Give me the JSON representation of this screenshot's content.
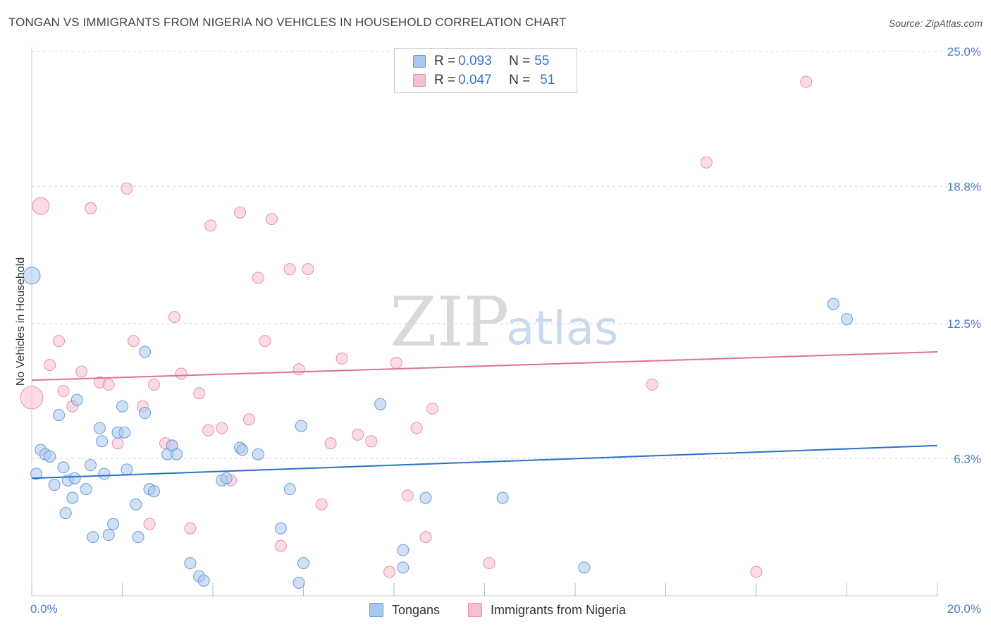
{
  "title": "TONGAN VS IMMIGRANTS FROM NIGERIA NO VEHICLES IN HOUSEHOLD CORRELATION CHART",
  "source": "Source: ZipAtlas.com",
  "watermark": {
    "zip": "ZIP",
    "atlas": "atlas"
  },
  "colors": {
    "blue_fill": "#a9c8ef",
    "blue_stroke": "#6b9ad8",
    "blue_line": "#2a6fcf",
    "pink_fill": "#f7c0d0",
    "pink_stroke": "#e890ac",
    "pink_line": "#e07098",
    "grid": "#d8d8d8",
    "axis_text": "#4a7cc0"
  },
  "legend_top": {
    "rows": [
      {
        "r_label": "R = ",
        "r_value": "0.093",
        "n_label": "N = ",
        "n_value": "55"
      },
      {
        "r_label": "R = ",
        "r_value": "0.047",
        "n_label": "N = ",
        "n_value": "51"
      }
    ]
  },
  "legend_bottom": {
    "series1": "Tongans",
    "series2": "Immigrants from Nigeria"
  },
  "chart_data": {
    "type": "scatter",
    "title": "TONGAN VS IMMIGRANTS FROM NIGERIA NO VEHICLES IN HOUSEHOLD CORRELATION CHART",
    "xlabel": "",
    "ylabel": "No Vehicles in Household",
    "xlim": [
      0,
      20
    ],
    "ylim": [
      0,
      25.9
    ],
    "x_tick_labels": [
      "0.0%",
      "20.0%"
    ],
    "y_ticks": [
      6.3,
      12.5,
      18.8,
      25.0
    ],
    "y_tick_labels": [
      "6.3%",
      "12.5%",
      "18.8%",
      "25.0%"
    ],
    "series": [
      {
        "name": "Tongans",
        "r": 0.093,
        "n": 55,
        "trend": {
          "x": [
            0,
            20
          ],
          "y": [
            5.4,
            6.9
          ]
        },
        "points": [
          [
            0.0,
            14.7
          ],
          [
            0.1,
            5.6
          ],
          [
            0.2,
            6.7
          ],
          [
            0.3,
            6.5
          ],
          [
            0.4,
            6.4
          ],
          [
            0.5,
            5.1
          ],
          [
            0.6,
            8.3
          ],
          [
            0.7,
            5.9
          ],
          [
            0.75,
            3.8
          ],
          [
            0.8,
            5.3
          ],
          [
            0.9,
            4.5
          ],
          [
            0.95,
            5.4
          ],
          [
            1.0,
            9.0
          ],
          [
            1.2,
            4.9
          ],
          [
            1.3,
            6.0
          ],
          [
            1.35,
            2.7
          ],
          [
            1.5,
            7.7
          ],
          [
            1.55,
            7.1
          ],
          [
            1.6,
            5.6
          ],
          [
            1.7,
            2.8
          ],
          [
            1.8,
            3.3
          ],
          [
            1.9,
            7.5
          ],
          [
            2.0,
            8.7
          ],
          [
            2.05,
            7.5
          ],
          [
            2.1,
            5.8
          ],
          [
            2.3,
            4.2
          ],
          [
            2.35,
            2.7
          ],
          [
            2.5,
            11.2
          ],
          [
            2.5,
            8.4
          ],
          [
            2.6,
            4.9
          ],
          [
            2.7,
            4.8
          ],
          [
            3.0,
            6.5
          ],
          [
            3.1,
            6.9
          ],
          [
            3.2,
            6.5
          ],
          [
            3.5,
            1.5
          ],
          [
            3.7,
            0.9
          ],
          [
            3.8,
            0.7
          ],
          [
            4.2,
            5.3
          ],
          [
            4.3,
            5.4
          ],
          [
            4.6,
            6.8
          ],
          [
            4.65,
            6.7
          ],
          [
            5.0,
            6.5
          ],
          [
            5.5,
            3.1
          ],
          [
            5.7,
            4.9
          ],
          [
            5.9,
            0.6
          ],
          [
            5.95,
            7.8
          ],
          [
            6.0,
            1.5
          ],
          [
            7.7,
            8.8
          ],
          [
            8.2,
            1.3
          ],
          [
            8.2,
            2.1
          ],
          [
            8.7,
            4.5
          ],
          [
            10.4,
            4.5
          ],
          [
            12.2,
            1.3
          ],
          [
            17.7,
            13.4
          ],
          [
            18.0,
            12.7
          ]
        ]
      },
      {
        "name": "Immigrants from Nigeria",
        "r": 0.047,
        "n": 51,
        "trend": {
          "x": [
            0,
            20
          ],
          "y": [
            9.9,
            11.2
          ]
        },
        "points": [
          [
            0.0,
            9.1
          ],
          [
            0.2,
            17.9
          ],
          [
            0.4,
            10.6
          ],
          [
            0.6,
            11.7
          ],
          [
            0.7,
            9.4
          ],
          [
            0.9,
            8.7
          ],
          [
            1.1,
            10.3
          ],
          [
            1.3,
            17.8
          ],
          [
            1.5,
            9.8
          ],
          [
            1.7,
            9.7
          ],
          [
            1.9,
            7.0
          ],
          [
            2.1,
            18.7
          ],
          [
            2.25,
            11.7
          ],
          [
            2.45,
            8.7
          ],
          [
            2.6,
            3.3
          ],
          [
            2.7,
            9.7
          ],
          [
            2.95,
            7.0
          ],
          [
            3.1,
            6.9
          ],
          [
            3.15,
            12.8
          ],
          [
            3.3,
            10.2
          ],
          [
            3.5,
            3.1
          ],
          [
            3.7,
            9.3
          ],
          [
            3.9,
            7.6
          ],
          [
            3.95,
            17.0
          ],
          [
            4.2,
            7.7
          ],
          [
            4.4,
            5.3
          ],
          [
            4.6,
            17.6
          ],
          [
            4.8,
            8.1
          ],
          [
            5.0,
            14.6
          ],
          [
            5.15,
            11.7
          ],
          [
            5.3,
            17.3
          ],
          [
            5.5,
            2.3
          ],
          [
            5.7,
            15.0
          ],
          [
            5.9,
            10.4
          ],
          [
            6.1,
            15.0
          ],
          [
            6.4,
            4.2
          ],
          [
            6.6,
            7.0
          ],
          [
            6.85,
            10.9
          ],
          [
            7.2,
            7.4
          ],
          [
            7.5,
            7.1
          ],
          [
            7.9,
            1.1
          ],
          [
            8.05,
            10.7
          ],
          [
            8.3,
            4.6
          ],
          [
            8.5,
            7.7
          ],
          [
            8.7,
            2.7
          ],
          [
            8.85,
            8.6
          ],
          [
            10.1,
            1.5
          ],
          [
            13.7,
            9.7
          ],
          [
            14.9,
            19.9
          ],
          [
            16.0,
            1.1
          ],
          [
            17.1,
            23.6
          ]
        ]
      }
    ]
  }
}
